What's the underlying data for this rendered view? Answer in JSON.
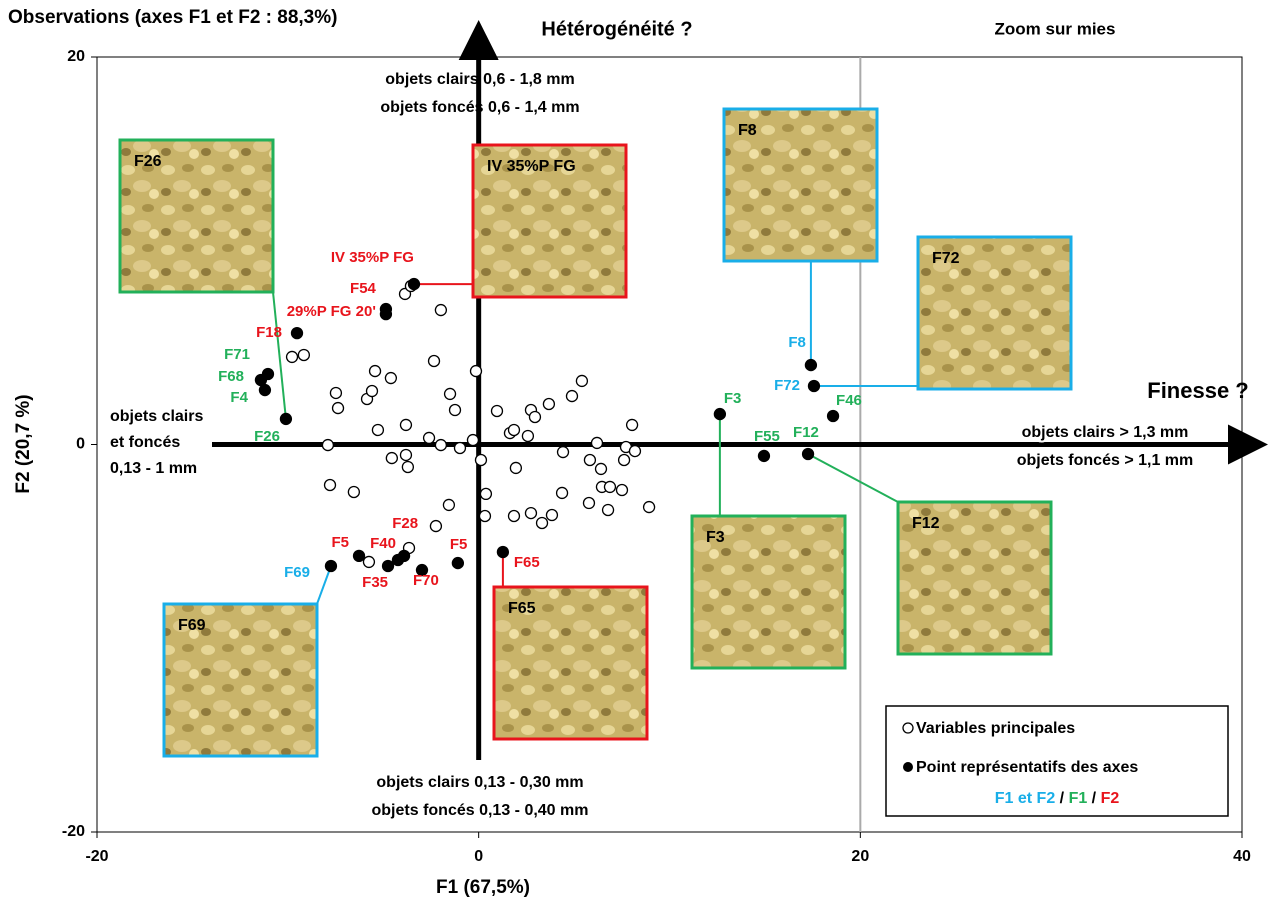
{
  "chart_data": {
    "type": "scatter",
    "title": "Observations (axes F1 et F2 : 88,3%)",
    "x_label": "F1 (67,5%)",
    "y_label": "F2 (20,7 %)",
    "xlim": [
      -20,
      40
    ],
    "ylim": [
      -20,
      20
    ],
    "xticks": [
      -20,
      0,
      20,
      40
    ],
    "yticks": [
      -20,
      0,
      20
    ],
    "zoom_line_x": 20,
    "series": [
      {
        "name": "Variables principales",
        "color": "#000000",
        "filled": false,
        "x": [
          -9.78,
          -9.16,
          -7.48,
          -7.37,
          -5.43,
          -4.6,
          -5.85,
          -5.59,
          -7.9,
          -5.28,
          -3.81,
          -4.55,
          -3.81,
          -3.71,
          -1.98,
          -2.34,
          -1.5,
          -1.24,
          -2.6,
          -1.98,
          -0.98,
          -0.3,
          -0.14,
          -7.79,
          -6.54,
          -1.56,
          -2.24,
          0.12,
          0.38,
          0.33,
          0.96,
          1.64,
          1.85,
          1.95,
          1.85,
          2.58,
          2.74,
          2.95,
          3.68,
          2.74,
          3.32,
          3.84,
          4.37,
          4.89,
          5.41,
          4.42,
          5.83,
          6.41,
          6.46,
          5.78,
          6.78,
          6.2,
          7.62,
          7.72,
          8.04,
          8.19,
          6.88,
          7.51,
          8.93,
          -5.75,
          -3.65,
          -3.86,
          -3.55
        ],
        "values": [
          4.52,
          4.62,
          2.66,
          1.88,
          3.79,
          3.43,
          2.35,
          2.76,
          -0.03,
          0.75,
          1.01,
          -0.7,
          -0.54,
          -1.16,
          6.94,
          4.31,
          2.61,
          1.78,
          0.34,
          -0.03,
          -0.18,
          0.23,
          3.79,
          -2.09,
          -2.45,
          -3.12,
          -4.21,
          -0.8,
          -2.55,
          -3.69,
          1.73,
          0.59,
          0.75,
          -1.21,
          -3.69,
          0.44,
          1.78,
          1.42,
          2.09,
          -3.54,
          -4.05,
          -3.64,
          -2.5,
          2.5,
          3.28,
          -0.39,
          -0.8,
          -1.26,
          -2.19,
          -3.02,
          -3.38,
          0.08,
          -0.8,
          -0.13,
          1.01,
          -0.34,
          -2.19,
          -2.35,
          -3.23,
          -6.06,
          -5.34,
          7.77,
          8.18
        ]
      },
      {
        "name": "Point représentatifs des axes",
        "color": "#000000",
        "filled": true,
        "x": [
          -9.52,
          -4.86,
          -4.86,
          -3.39,
          -11.04,
          -11.41,
          -11.2,
          -10.1,
          -7.74,
          -6.27,
          -4.75,
          -4.23,
          -3.91,
          -2.97,
          -1.09,
          1.27,
          12.64,
          17.41,
          17.57,
          18.57,
          14.95,
          17.26
        ],
        "values": [
          5.75,
          6.73,
          6.99,
          8.28,
          3.64,
          3.33,
          2.81,
          1.32,
          -6.27,
          -5.75,
          -6.27,
          -5.96,
          -5.75,
          -6.48,
          -6.12,
          -5.55,
          1.57,
          4.1,
          3.02,
          1.47,
          -0.59,
          -0.49
        ],
        "labels": [
          "F18",
          "29%P FG 20'",
          "F54",
          "IV 35%P FG",
          "F71",
          "F68",
          "F4",
          "F26",
          "F69",
          "F5",
          "F35",
          "F40",
          "F28",
          "F70",
          "F5",
          "F65",
          "F3",
          "F8",
          "F72",
          "F46",
          "F55",
          "F12"
        ],
        "label_colors": [
          "#e8141c",
          "#e8141c",
          "#e8141c",
          "#e8141c",
          "#22b05a",
          "#22b05a",
          "#22b05a",
          "#22b05a",
          "#19aee8",
          "#e8141c",
          "#e8141c",
          "#e8141c",
          "#e8141c",
          "#e8141c",
          "#e8141c",
          "#e8141c",
          "#22b05a",
          "#19aee8",
          "#19aee8",
          "#22b05a",
          "#22b05a",
          "#22b05a"
        ]
      }
    ],
    "annotations": [
      "Hétérogénéité ?",
      "Zoom sur mies",
      "Finesse ?",
      "objets clairs 0,6 - 1,8 mm",
      "objets foncés 0,6 - 1,4 mm",
      "objets clairs",
      "et foncés",
      "0,13 - 1 mm",
      "objets clairs > 1,3 mm",
      "objets foncés > 1,1 mm",
      "objets clairs 0,13 - 0,30 mm",
      "objets foncés 0,13 - 0,40 mm"
    ],
    "insets": [
      {
        "label": "F26",
        "color": "#22b05a"
      },
      {
        "label": "IV 35%P FG",
        "color": "#e8141c"
      },
      {
        "label": "F8",
        "color": "#19aee8"
      },
      {
        "label": "F72",
        "color": "#19aee8"
      },
      {
        "label": "F3",
        "color": "#22b05a"
      },
      {
        "label": "F12",
        "color": "#22b05a"
      },
      {
        "label": "F69",
        "color": "#19aee8"
      },
      {
        "label": "F65",
        "color": "#e8141c"
      }
    ],
    "legend_key": [
      {
        "text": "F1 et F2",
        "color": "#19aee8"
      },
      {
        "text": " / ",
        "color": "#000000"
      },
      {
        "text": "F1",
        "color": "#22b05a"
      },
      {
        "text": " / ",
        "color": "#000000"
      },
      {
        "text": "F2",
        "color": "#e8141c"
      }
    ]
  }
}
